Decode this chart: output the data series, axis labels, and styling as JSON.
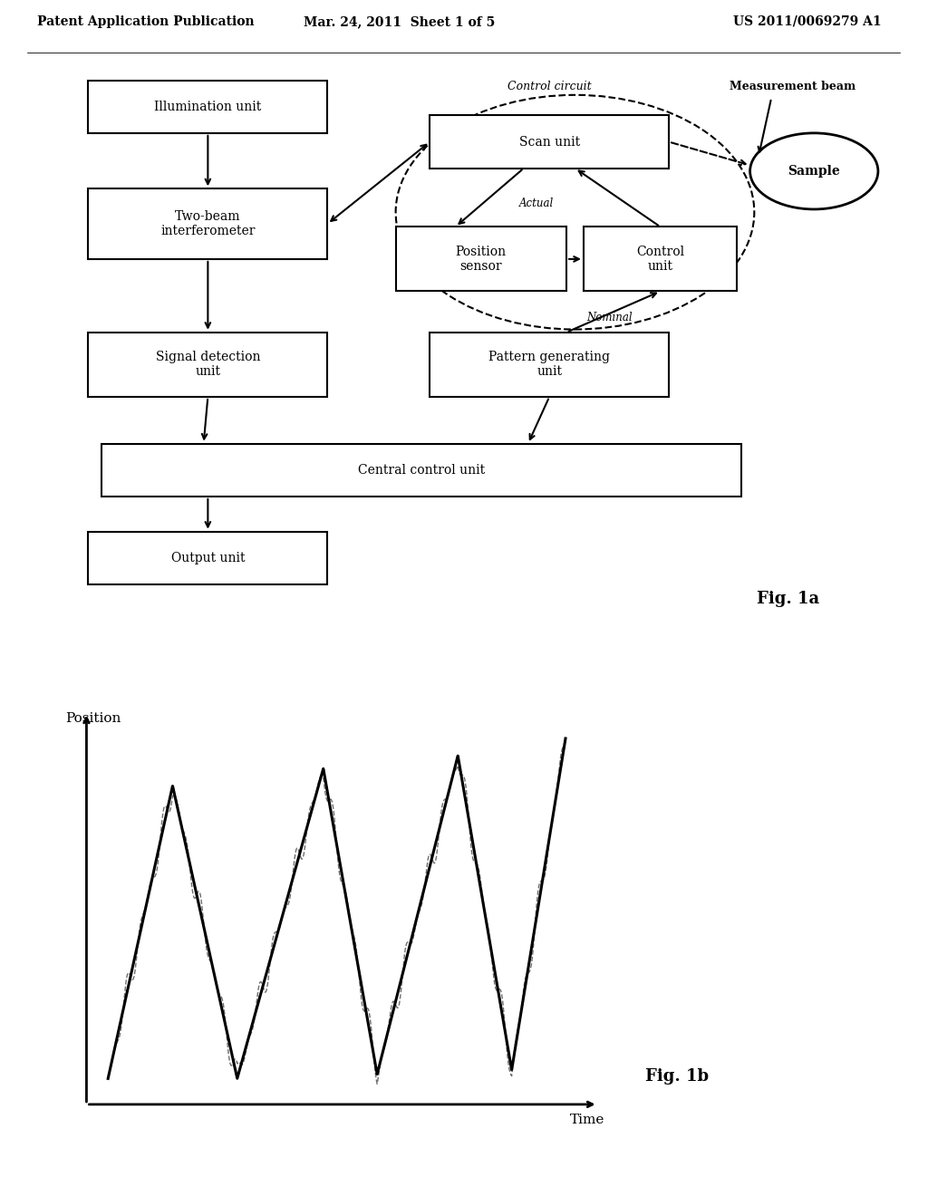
{
  "background_color": "#ffffff",
  "header_left": "Patent Application Publication",
  "header_center": "Mar. 24, 2011  Sheet 1 of 5",
  "header_right": "US 2011/0069279 A1",
  "fig1a_label": "Fig. 1a",
  "fig1b_label": "Fig. 1b",
  "control_circuit_label": "Control circuit",
  "measurement_beam_label": "Measurement beam",
  "actual_label": "Actual",
  "nominal_label": "Nominal",
  "sample_label": "Sample",
  "position_label": "Position",
  "time_label": "Time"
}
